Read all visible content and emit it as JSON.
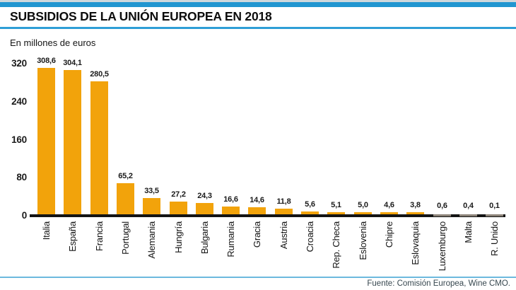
{
  "header": {
    "title": "SUBSIDIOS DE LA UNIÓN EUROPEA EN 2018",
    "units_label": "En millones de euros"
  },
  "footer": {
    "source": "Fuente: Comisión Europea, Wine CMO."
  },
  "chart_data": {
    "type": "bar",
    "title": "SUBSIDIOS DE LA UNIÓN EUROPEA EN 2018",
    "ylabel": "En millones de euros",
    "categories": [
      "Italia",
      "España",
      "Francia",
      "Portugal",
      "Alemania",
      "Hungría",
      "Bulgaria",
      "Rumania",
      "Gracia",
      "Austria",
      "Croacia",
      "Rep. Checa",
      "Eslovenia",
      "Chipre",
      "Eslovaquia",
      "Luxemburgo",
      "Malta",
      "R. Unido"
    ],
    "values": [
      308.6,
      304.1,
      280.5,
      65.2,
      33.5,
      27.2,
      24.3,
      16.6,
      14.6,
      11.8,
      5.6,
      5.1,
      5.0,
      4.6,
      3.8,
      0.6,
      0.4,
      0.1
    ],
    "value_labels": [
      "308,6",
      "304,1",
      "280,5",
      "65,2",
      "33,5",
      "27,2",
      "24,3",
      "16,6",
      "14,6",
      "11,8",
      "5,6",
      "5,1",
      "5,0",
      "4,6",
      "3,8",
      "0,6",
      "0,4",
      "0,1"
    ],
    "y_ticks": [
      0,
      80,
      160,
      240,
      320
    ],
    "ylim": [
      0,
      320
    ],
    "grid": false,
    "legend": "none",
    "source": "Fuente: Comisión Europea, Wine CMO.",
    "colors": {
      "bar": "#f2a30b",
      "bar_tiny": "#8a8177",
      "axis": "#141414",
      "accent_blue": "#2196d0",
      "divider_blue": "#2e9ed6",
      "source_text": "#37474f"
    }
  }
}
